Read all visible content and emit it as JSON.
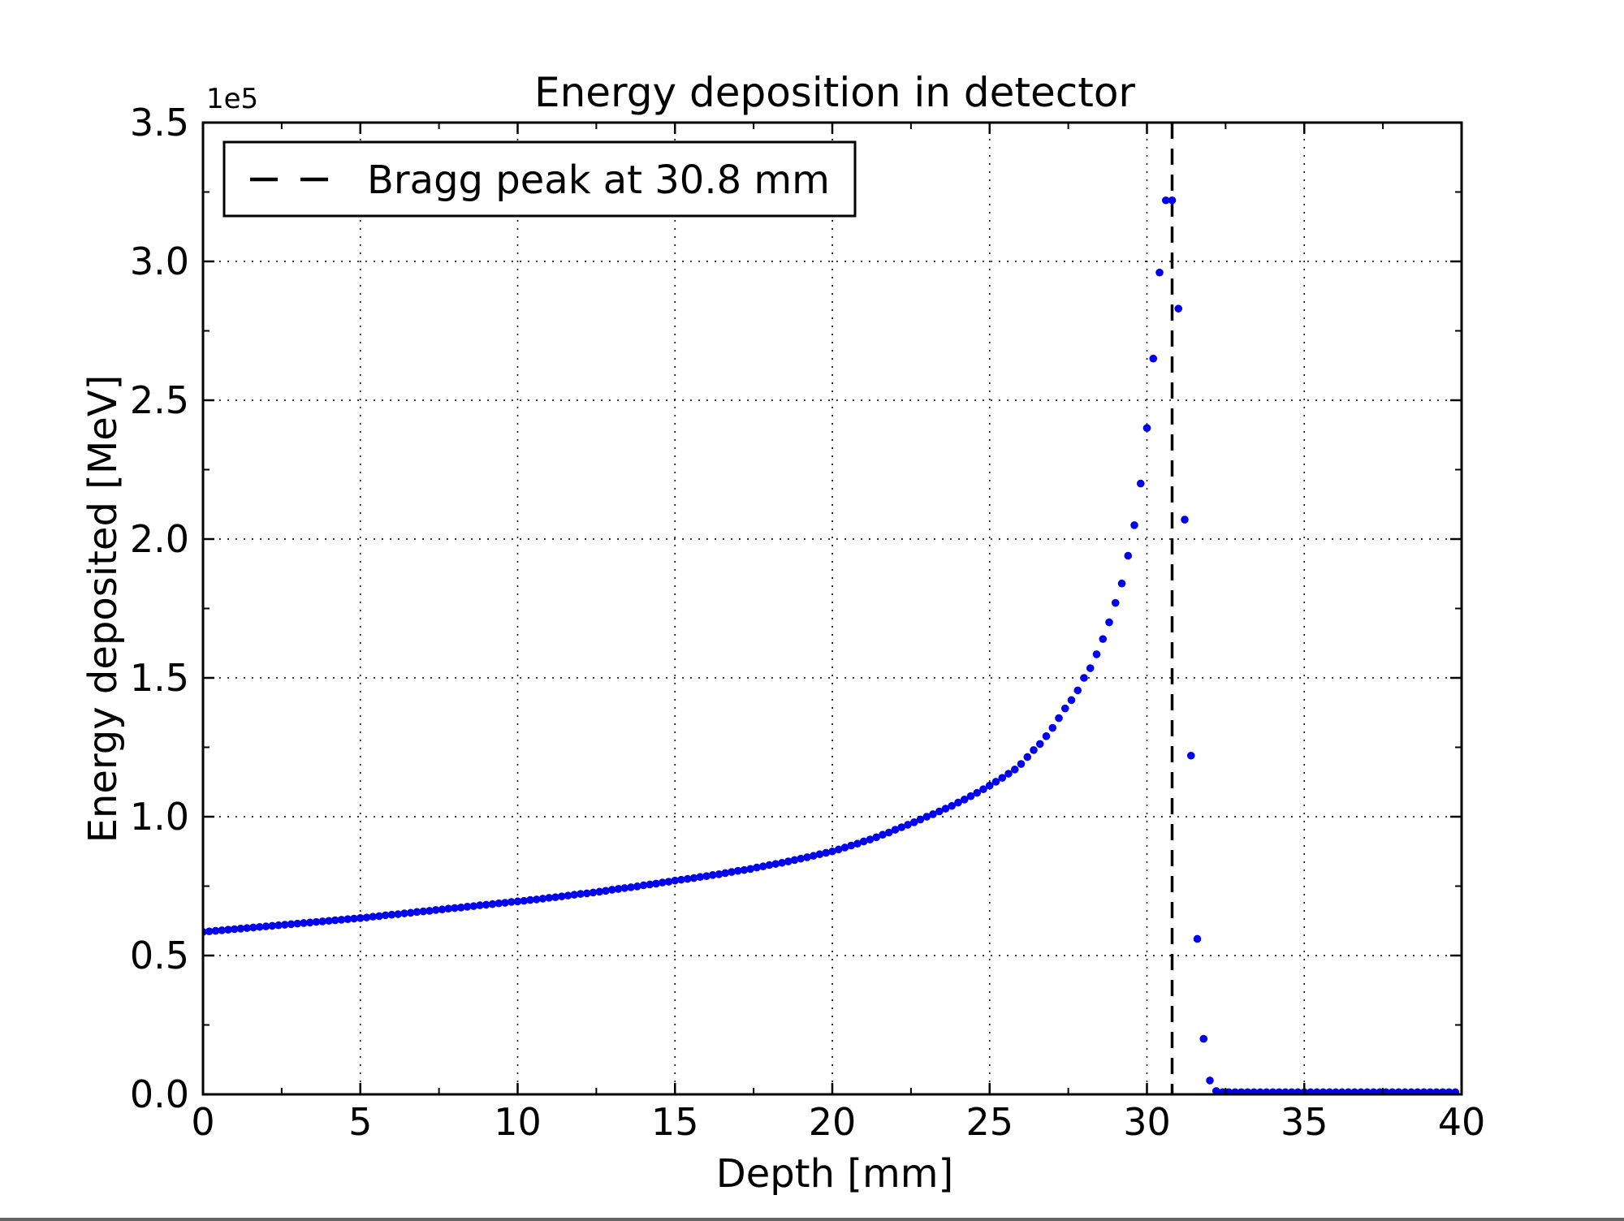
{
  "window": {
    "background": "#ffffff",
    "ink_color": "#000000"
  },
  "chart_data": {
    "type": "scatter",
    "title": "Energy deposition in detector",
    "xlabel": "Depth [mm]",
    "ylabel": "Energy deposited [MeV]",
    "y_offset_label": "1e5",
    "y_units": "1e5 MeV",
    "xlim": [
      0,
      40
    ],
    "ylim": [
      0,
      3.5
    ],
    "xticks": {
      "major": [
        0,
        5,
        10,
        15,
        20,
        25,
        30,
        35,
        40
      ],
      "labels": [
        "0",
        "5",
        "10",
        "15",
        "20",
        "25",
        "30",
        "35",
        "40"
      ],
      "minor": [
        2.5,
        7.5,
        12.5,
        17.5,
        22.5,
        27.5,
        32.5,
        37.5
      ]
    },
    "yticks": {
      "major": [
        0,
        0.5,
        1.0,
        1.5,
        2.0,
        2.5,
        3.0,
        3.5
      ],
      "labels": [
        "0.0",
        "0.5",
        "1.0",
        "1.5",
        "2.0",
        "2.5",
        "3.0",
        "3.5"
      ],
      "minor": [
        0.25,
        0.75,
        1.25,
        1.75,
        2.25,
        2.75,
        3.25
      ]
    },
    "grid": {
      "which": "major",
      "style": "dotted",
      "color": "#000000"
    },
    "series": [
      {
        "name": "energy-deposited",
        "marker": "circle",
        "color": "#0000ee",
        "x_start": 0.0,
        "x_step": 0.2,
        "y_1e5": [
          0.585,
          0.587,
          0.589,
          0.591,
          0.593,
          0.595,
          0.597,
          0.599,
          0.601,
          0.603,
          0.605,
          0.607,
          0.609,
          0.611,
          0.613,
          0.615,
          0.617,
          0.619,
          0.621,
          0.623,
          0.625,
          0.627,
          0.629,
          0.631,
          0.633,
          0.635,
          0.637,
          0.64,
          0.642,
          0.645,
          0.647,
          0.649,
          0.652,
          0.654,
          0.657,
          0.659,
          0.661,
          0.664,
          0.666,
          0.669,
          0.671,
          0.673,
          0.676,
          0.678,
          0.681,
          0.683,
          0.685,
          0.688,
          0.69,
          0.693,
          0.695,
          0.697,
          0.7,
          0.702,
          0.705,
          0.708,
          0.71,
          0.713,
          0.716,
          0.719,
          0.722,
          0.724,
          0.727,
          0.73,
          0.733,
          0.737,
          0.74,
          0.743,
          0.746,
          0.749,
          0.753,
          0.756,
          0.759,
          0.763,
          0.766,
          0.77,
          0.773,
          0.776,
          0.779,
          0.783,
          0.786,
          0.79,
          0.793,
          0.797,
          0.801,
          0.805,
          0.808,
          0.812,
          0.817,
          0.821,
          0.826,
          0.83,
          0.834,
          0.839,
          0.844,
          0.849,
          0.854,
          0.859,
          0.865,
          0.87,
          0.875,
          0.882,
          0.889,
          0.896,
          0.903,
          0.911,
          0.918,
          0.926,
          0.935,
          0.943,
          0.953,
          0.962,
          0.971,
          0.98,
          0.99,
          1.0,
          1.009,
          1.019,
          1.029,
          1.039,
          1.051,
          1.062,
          1.074,
          1.086,
          1.099,
          1.112,
          1.126,
          1.14,
          1.155,
          1.17,
          1.19,
          1.215,
          1.24,
          1.262,
          1.29,
          1.32,
          1.355,
          1.39,
          1.42,
          1.455,
          1.5,
          1.535,
          1.585,
          1.64,
          1.7,
          1.77,
          1.84,
          1.94,
          2.05,
          2.2,
          2.4,
          2.65,
          2.96,
          3.22,
          3.22,
          2.83,
          2.07,
          1.22,
          0.56,
          0.2,
          0.05,
          0.012,
          0.008,
          0.008,
          0.008,
          0.008,
          0.008,
          0.008,
          0.008,
          0.008,
          0.008,
          0.008,
          0.008,
          0.008,
          0.008,
          0.008,
          0.008,
          0.008,
          0.008,
          0.008,
          0.008,
          0.008,
          0.008,
          0.008,
          0.008,
          0.008,
          0.008,
          0.008,
          0.008,
          0.008,
          0.008,
          0.008,
          0.008,
          0.008,
          0.008,
          0.008,
          0.008,
          0.008,
          0.008,
          0.008
        ]
      }
    ],
    "annotations": [
      {
        "type": "vline",
        "x": 30.8,
        "style": "dashed",
        "color": "#000000"
      }
    ],
    "legend": {
      "position": "upper left",
      "entries": [
        {
          "label": "Bragg peak at 30.8 mm",
          "line_style": "dashed",
          "color": "#000000"
        }
      ]
    }
  }
}
